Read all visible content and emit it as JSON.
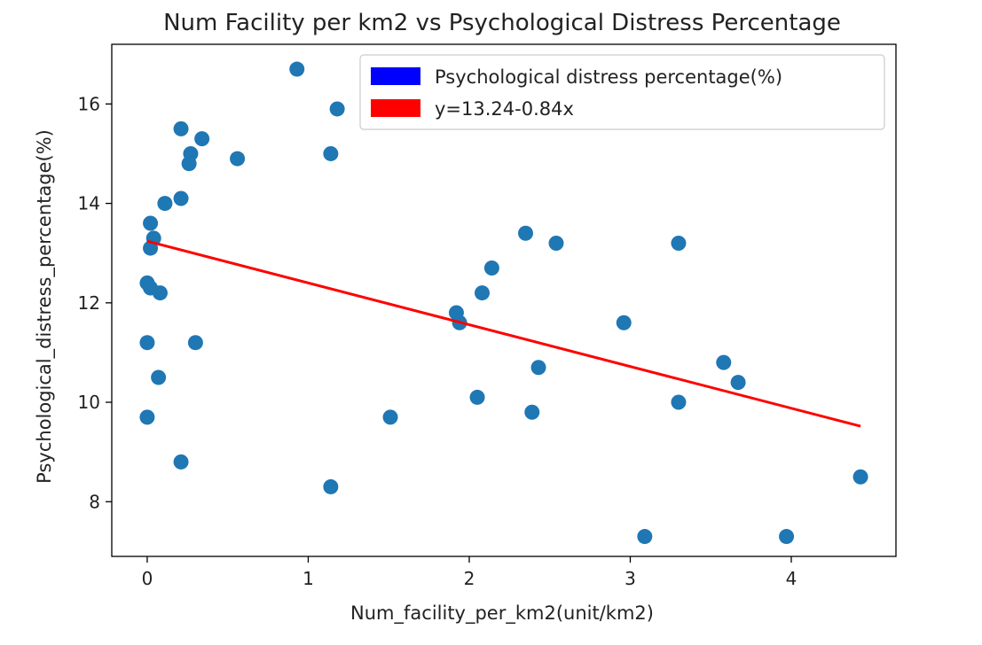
{
  "chart_data": {
    "type": "scatter",
    "title": "Num Facility per km2 vs Psychological Distress Percentage",
    "xlabel": "Num_facility_per_km2(unit/km2)",
    "ylabel": "Psychological_distress_percentage(%)",
    "xlim": [
      -0.22,
      4.65
    ],
    "ylim": [
      6.9,
      17.2
    ],
    "xticks": [
      0,
      1,
      2,
      3,
      4
    ],
    "yticks": [
      8,
      10,
      12,
      14,
      16
    ],
    "grid": false,
    "legend": {
      "placement": "top-right",
      "entries": [
        {
          "label": "Psychological distress percentage(%)",
          "color": "#0000ff"
        },
        {
          "label": "y=13.24-0.84x",
          "color": "#ff0000"
        }
      ]
    },
    "scatter_color": "#1f77b4",
    "line_color": "#ff0000",
    "points": [
      {
        "x": 0.93,
        "y": 16.7
      },
      {
        "x": 1.18,
        "y": 15.9
      },
      {
        "x": 0.21,
        "y": 15.5
      },
      {
        "x": 0.34,
        "y": 15.3
      },
      {
        "x": 1.14,
        "y": 15.0
      },
      {
        "x": 0.27,
        "y": 15.0
      },
      {
        "x": 0.56,
        "y": 14.9
      },
      {
        "x": 0.26,
        "y": 14.8
      },
      {
        "x": 0.21,
        "y": 14.1
      },
      {
        "x": 0.11,
        "y": 14.0
      },
      {
        "x": 0.02,
        "y": 13.6
      },
      {
        "x": 2.35,
        "y": 13.4
      },
      {
        "x": 0.04,
        "y": 13.3
      },
      {
        "x": 2.54,
        "y": 13.2
      },
      {
        "x": 3.3,
        "y": 13.2
      },
      {
        "x": 0.02,
        "y": 13.1
      },
      {
        "x": 2.14,
        "y": 12.7
      },
      {
        "x": 0.0,
        "y": 12.4
      },
      {
        "x": 0.02,
        "y": 12.3
      },
      {
        "x": 2.08,
        "y": 12.2
      },
      {
        "x": 0.08,
        "y": 12.2
      },
      {
        "x": 1.92,
        "y": 11.8
      },
      {
        "x": 1.94,
        "y": 11.6
      },
      {
        "x": 2.96,
        "y": 11.6
      },
      {
        "x": 0.0,
        "y": 11.2
      },
      {
        "x": 0.3,
        "y": 11.2
      },
      {
        "x": 3.58,
        "y": 10.8
      },
      {
        "x": 2.43,
        "y": 10.7
      },
      {
        "x": 0.07,
        "y": 10.5
      },
      {
        "x": 3.67,
        "y": 10.4
      },
      {
        "x": 2.05,
        "y": 10.1
      },
      {
        "x": 3.3,
        "y": 10.0
      },
      {
        "x": 2.39,
        "y": 9.8
      },
      {
        "x": 0.0,
        "y": 9.7
      },
      {
        "x": 1.51,
        "y": 9.7
      },
      {
        "x": 0.21,
        "y": 8.8
      },
      {
        "x": 4.43,
        "y": 8.5
      },
      {
        "x": 1.14,
        "y": 8.3
      },
      {
        "x": 3.09,
        "y": 7.3
      },
      {
        "x": 3.97,
        "y": 7.3
      }
    ],
    "regression": {
      "intercept": 13.24,
      "slope": -0.84,
      "x_range": [
        0.0,
        4.43
      ]
    }
  }
}
